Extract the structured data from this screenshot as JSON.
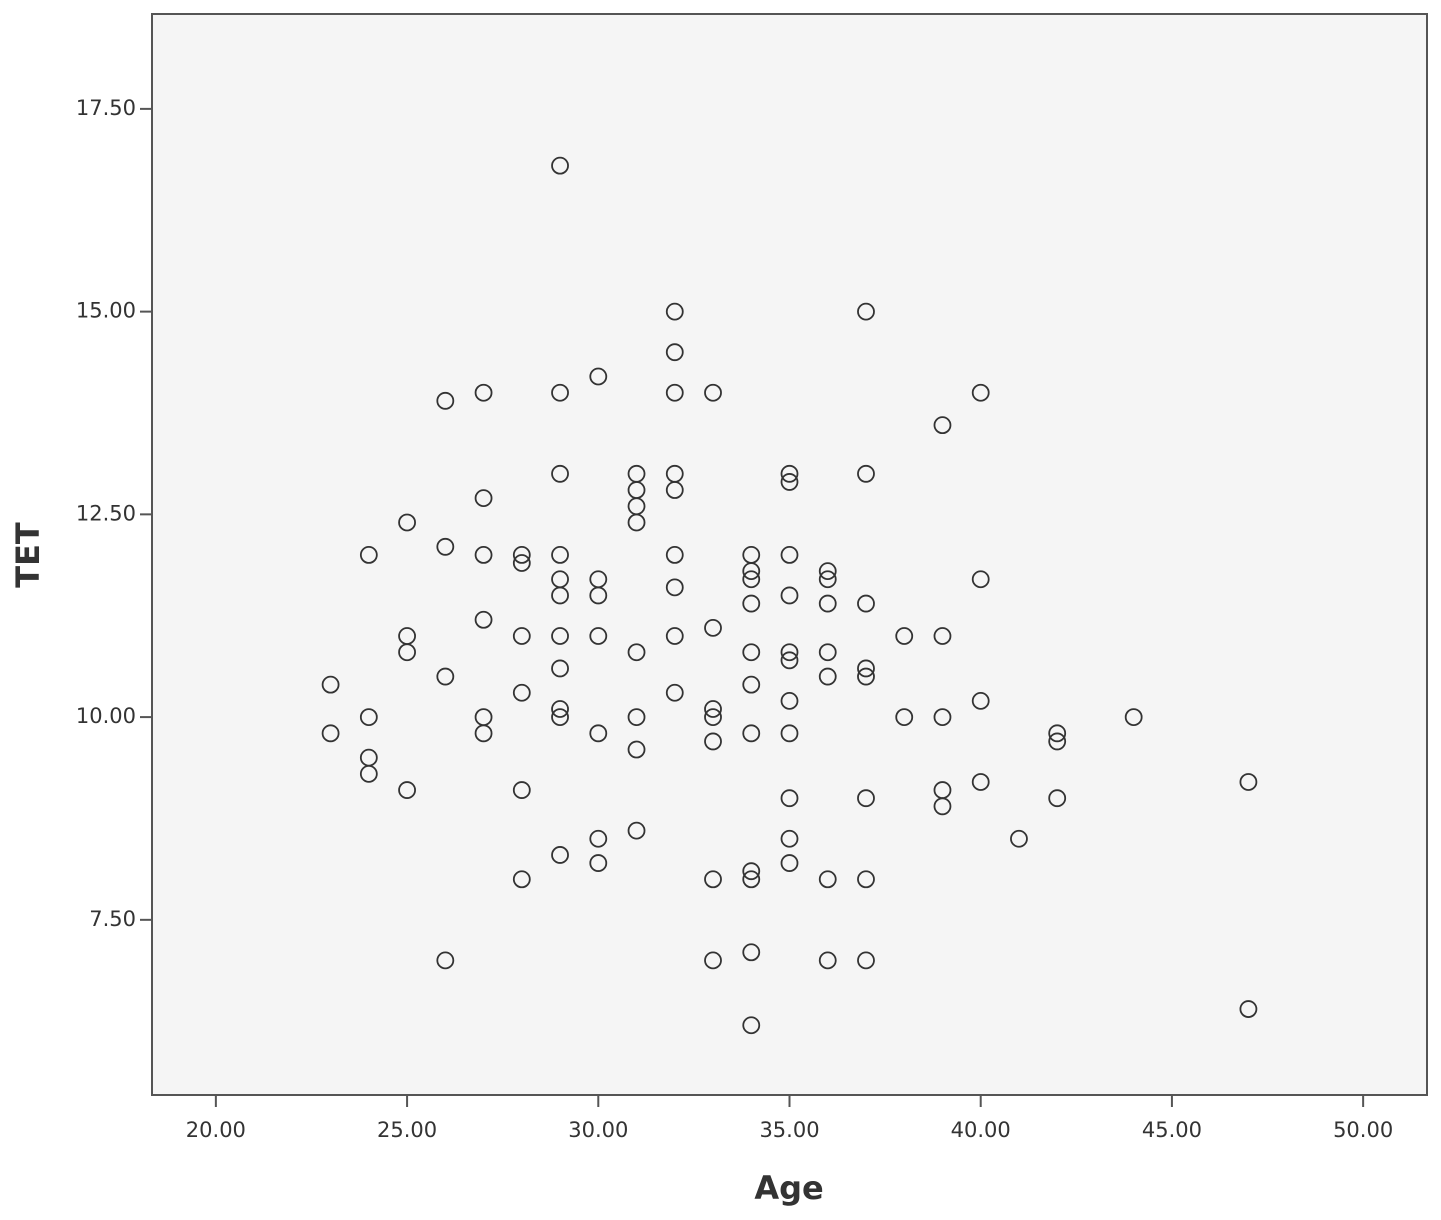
{
  "chart_data": {
    "type": "scatter",
    "x_label": "Age",
    "y_label": "TET",
    "x": [
      23,
      23,
      24,
      24,
      24,
      24,
      25,
      25,
      25,
      25,
      26,
      26,
      26,
      26,
      27,
      27,
      27,
      27,
      27,
      27,
      28,
      28,
      28,
      28,
      28,
      28,
      29,
      29,
      29,
      29,
      29,
      29,
      29,
      29,
      29,
      29,
      29,
      30,
      30,
      30,
      30,
      30,
      30,
      30,
      31,
      31,
      31,
      31,
      31,
      31,
      31,
      31,
      32,
      32,
      32,
      32,
      32,
      32,
      32,
      32,
      32,
      33,
      33,
      33,
      33,
      33,
      33,
      33,
      34,
      34,
      34,
      34,
      34,
      34,
      34,
      34,
      34,
      34,
      34,
      35,
      35,
      35,
      35,
      35,
      35,
      35,
      35,
      35,
      35,
      35,
      36,
      36,
      36,
      36,
      36,
      36,
      36,
      37,
      37,
      37,
      37,
      37,
      37,
      37,
      37,
      38,
      38,
      39,
      39,
      39,
      39,
      39,
      40,
      40,
      40,
      40,
      41,
      42,
      42,
      42,
      44,
      47,
      47
    ],
    "values": [
      10.4,
      9.8,
      12.0,
      10.0,
      9.5,
      9.3,
      12.4,
      11.0,
      10.8,
      9.1,
      13.9,
      12.1,
      10.5,
      7.0,
      14.0,
      12.7,
      12.0,
      11.2,
      10.0,
      9.8,
      12.0,
      11.9,
      11.0,
      10.3,
      9.1,
      8.0,
      16.8,
      14.0,
      13.0,
      12.0,
      11.7,
      11.5,
      11.0,
      10.6,
      10.1,
      10.0,
      8.3,
      14.2,
      11.7,
      11.5,
      11.0,
      9.8,
      8.5,
      8.2,
      13.0,
      12.8,
      12.6,
      12.4,
      10.8,
      10.0,
      9.6,
      8.6,
      15.0,
      14.5,
      14.0,
      13.0,
      12.8,
      12.0,
      11.6,
      11.0,
      10.3,
      14.0,
      11.1,
      10.1,
      10.0,
      9.7,
      8.0,
      7.0,
      12.0,
      11.8,
      11.7,
      11.4,
      10.8,
      10.4,
      9.8,
      8.1,
      8.0,
      7.1,
      6.2,
      13.0,
      12.9,
      12.0,
      11.5,
      10.8,
      10.7,
      10.2,
      9.8,
      9.0,
      8.5,
      8.2,
      11.8,
      11.7,
      11.4,
      10.8,
      10.5,
      8.0,
      7.0,
      15.0,
      13.0,
      11.4,
      10.6,
      10.5,
      9.0,
      8.0,
      7.0,
      11.0,
      10.0,
      13.6,
      11.0,
      10.0,
      9.1,
      8.9,
      14.0,
      11.7,
      10.2,
      9.2,
      8.5,
      9.8,
      9.7,
      9.0,
      10.0,
      9.2,
      6.4
    ],
    "xlim": [
      18.33,
      51.67
    ],
    "ylim": [
      5.34,
      18.67
    ],
    "xticks": [
      {
        "value": 20,
        "label": "20.00"
      },
      {
        "value": 25,
        "label": "25.00"
      },
      {
        "value": 30,
        "label": "30.00"
      },
      {
        "value": 35,
        "label": "35.00"
      },
      {
        "value": 40,
        "label": "40.00"
      },
      {
        "value": 45,
        "label": "45.00"
      },
      {
        "value": 50,
        "label": "50.00"
      }
    ],
    "yticks": [
      {
        "value": 7.5,
        "label": "7.50"
      },
      {
        "value": 10,
        "label": "10.00"
      },
      {
        "value": 12.5,
        "label": "12.50"
      },
      {
        "value": 15,
        "label": "15.00"
      },
      {
        "value": 17.5,
        "label": "17.50"
      }
    ],
    "grid": false,
    "marker_color": "#333333",
    "plot_background": "#f5f5f5"
  }
}
